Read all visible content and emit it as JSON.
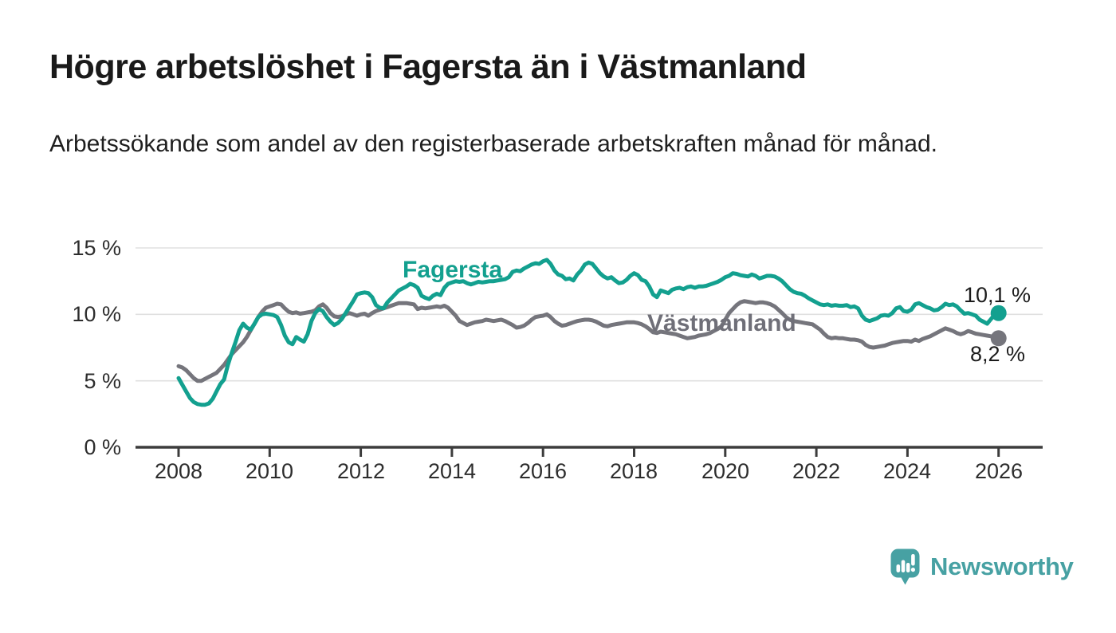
{
  "header": {
    "title": "Högre arbetslöshet i Fagersta än i Västmanland",
    "subtitle": "Arbetssökande som andel av den registerbaserade arbetskraften månad för månad."
  },
  "chart_data": {
    "type": "line",
    "title": "Högre arbetslöshet i Fagersta än i Västmanland",
    "subtitle": "Arbetssökande som andel av den registerbaserade arbetskraften månad för månad.",
    "unit": "%",
    "x_start_year": 2008,
    "x_step_months": 1,
    "x_end_year": 2026,
    "ylim": [
      0,
      15.7
    ],
    "grid": true,
    "grid_percent_lines": [
      5,
      10,
      15
    ],
    "x_tick_labels": [
      "2008",
      "2010",
      "2012",
      "2014",
      "2016",
      "2018",
      "2020",
      "2022",
      "2024",
      "2026"
    ],
    "x_tick_years": [
      2008,
      2010,
      2012,
      2014,
      2016,
      2018,
      2020,
      2022,
      2024,
      2026
    ],
    "y_tick_labels": [
      "15 %",
      "10 %",
      "5 %",
      "0 %"
    ],
    "series": [
      {
        "name": "Fagersta",
        "color": "#13a08f",
        "end_label": "10,1 %",
        "end_value": 10.1,
        "values": [
          5.2,
          4.7,
          4.2,
          3.7,
          3.4,
          3.25,
          3.2,
          3.2,
          3.3,
          3.65,
          4.2,
          4.75,
          5.1,
          6.2,
          7.1,
          7.9,
          8.8,
          9.3,
          9.0,
          8.85,
          9.3,
          9.8,
          10.0,
          10.05,
          10.0,
          9.95,
          9.8,
          9.2,
          8.4,
          7.9,
          7.75,
          8.3,
          8.1,
          7.95,
          8.5,
          9.5,
          10.1,
          10.4,
          10.25,
          9.8,
          9.45,
          9.2,
          9.35,
          9.65,
          10.1,
          10.55,
          11.0,
          11.5,
          11.6,
          11.65,
          11.6,
          11.3,
          10.7,
          10.5,
          10.45,
          10.9,
          11.2,
          11.5,
          11.8,
          11.95,
          12.1,
          12.3,
          12.2,
          12.0,
          11.4,
          11.25,
          11.15,
          11.4,
          11.55,
          11.45,
          12.0,
          12.3,
          12.4,
          12.5,
          12.45,
          12.5,
          12.35,
          12.25,
          12.35,
          12.45,
          12.4,
          12.45,
          12.5,
          12.5,
          12.55,
          12.6,
          12.65,
          12.8,
          13.2,
          13.3,
          13.25,
          13.45,
          13.6,
          13.75,
          13.85,
          13.8,
          14.0,
          14.1,
          13.8,
          13.3,
          13.0,
          12.9,
          12.65,
          12.7,
          12.55,
          13.0,
          13.3,
          13.75,
          13.9,
          13.8,
          13.45,
          13.1,
          12.85,
          12.7,
          12.8,
          12.55,
          12.35,
          12.4,
          12.6,
          12.9,
          13.1,
          12.95,
          12.6,
          12.5,
          12.1,
          11.5,
          11.3,
          11.8,
          11.7,
          11.6,
          11.85,
          11.95,
          12.0,
          11.9,
          12.05,
          12.1,
          12.0,
          12.1,
          12.1,
          12.15,
          12.25,
          12.35,
          12.45,
          12.6,
          12.8,
          12.9,
          13.1,
          13.05,
          12.95,
          12.9,
          12.85,
          13.0,
          12.9,
          12.7,
          12.8,
          12.9,
          12.9,
          12.85,
          12.7,
          12.5,
          12.2,
          11.9,
          11.7,
          11.6,
          11.55,
          11.4,
          11.2,
          11.05,
          10.9,
          10.75,
          10.7,
          10.75,
          10.65,
          10.7,
          10.65,
          10.65,
          10.7,
          10.55,
          10.6,
          10.45,
          9.9,
          9.6,
          9.5,
          9.6,
          9.7,
          9.9,
          9.95,
          9.9,
          10.1,
          10.45,
          10.55,
          10.25,
          10.2,
          10.35,
          10.75,
          10.85,
          10.7,
          10.55,
          10.45,
          10.3,
          10.35,
          10.55,
          10.8,
          10.7,
          10.75,
          10.6,
          10.3,
          10.05,
          10.1,
          10.0,
          9.9,
          9.6,
          9.45,
          9.3,
          9.65,
          10.0,
          10.1
        ]
      },
      {
        "name": "Västmanland",
        "color": "#75757c",
        "end_label": "8,2 %",
        "end_value": 8.2,
        "values": [
          6.1,
          6.0,
          5.8,
          5.5,
          5.2,
          5.0,
          5.0,
          5.15,
          5.3,
          5.45,
          5.6,
          5.9,
          6.2,
          6.6,
          7.0,
          7.3,
          7.6,
          7.9,
          8.3,
          8.8,
          9.3,
          9.8,
          10.2,
          10.5,
          10.6,
          10.7,
          10.8,
          10.75,
          10.45,
          10.2,
          10.1,
          10.15,
          10.05,
          10.1,
          10.15,
          10.2,
          10.3,
          10.6,
          10.75,
          10.5,
          10.1,
          9.85,
          9.8,
          9.85,
          10.0,
          10.1,
          10.0,
          9.9,
          10.0,
          10.05,
          9.9,
          10.1,
          10.25,
          10.35,
          10.45,
          10.55,
          10.65,
          10.75,
          10.85,
          10.85,
          10.85,
          10.8,
          10.75,
          10.4,
          10.5,
          10.45,
          10.5,
          10.55,
          10.6,
          10.55,
          10.65,
          10.5,
          10.2,
          9.9,
          9.5,
          9.35,
          9.2,
          9.3,
          9.4,
          9.45,
          9.5,
          9.6,
          9.55,
          9.5,
          9.55,
          9.6,
          9.5,
          9.35,
          9.2,
          9.0,
          9.05,
          9.15,
          9.35,
          9.6,
          9.8,
          9.85,
          9.9,
          10.0,
          9.8,
          9.5,
          9.3,
          9.15,
          9.2,
          9.3,
          9.4,
          9.5,
          9.55,
          9.6,
          9.6,
          9.55,
          9.45,
          9.3,
          9.15,
          9.1,
          9.2,
          9.25,
          9.3,
          9.35,
          9.4,
          9.4,
          9.4,
          9.35,
          9.25,
          9.1,
          8.9,
          8.65,
          8.6,
          8.7,
          8.65,
          8.6,
          8.55,
          8.5,
          8.4,
          8.3,
          8.2,
          8.25,
          8.3,
          8.4,
          8.45,
          8.5,
          8.6,
          8.75,
          8.9,
          9.1,
          9.6,
          10.1,
          10.4,
          10.7,
          10.9,
          11.0,
          10.95,
          10.9,
          10.85,
          10.9,
          10.9,
          10.85,
          10.75,
          10.6,
          10.35,
          10.1,
          9.8,
          9.6,
          9.5,
          9.45,
          9.4,
          9.35,
          9.3,
          9.25,
          9.05,
          8.85,
          8.55,
          8.3,
          8.2,
          8.25,
          8.2,
          8.2,
          8.15,
          8.1,
          8.1,
          8.05,
          7.95,
          7.7,
          7.55,
          7.5,
          7.55,
          7.6,
          7.65,
          7.75,
          7.85,
          7.9,
          7.95,
          8.0,
          8.0,
          7.95,
          8.1,
          8.0,
          8.15,
          8.25,
          8.35,
          8.5,
          8.65,
          8.8,
          8.95,
          8.85,
          8.75,
          8.6,
          8.5,
          8.6,
          8.75,
          8.65,
          8.55,
          8.5,
          8.45,
          8.4,
          8.35,
          8.3,
          8.2
        ]
      }
    ],
    "legend_position": "inline-labels"
  },
  "branding": {
    "logo_text": "Newsworthy",
    "logo_color": "#47a1a3",
    "logo_icon": "newsworthy-barchart-pin"
  },
  "colors": {
    "fagersta_line": "#13a08f",
    "vastmanland_line": "#75757c",
    "gridline": "#e0e0e0",
    "axis": "#3c3c3c",
    "text": "#1f1f1f"
  }
}
